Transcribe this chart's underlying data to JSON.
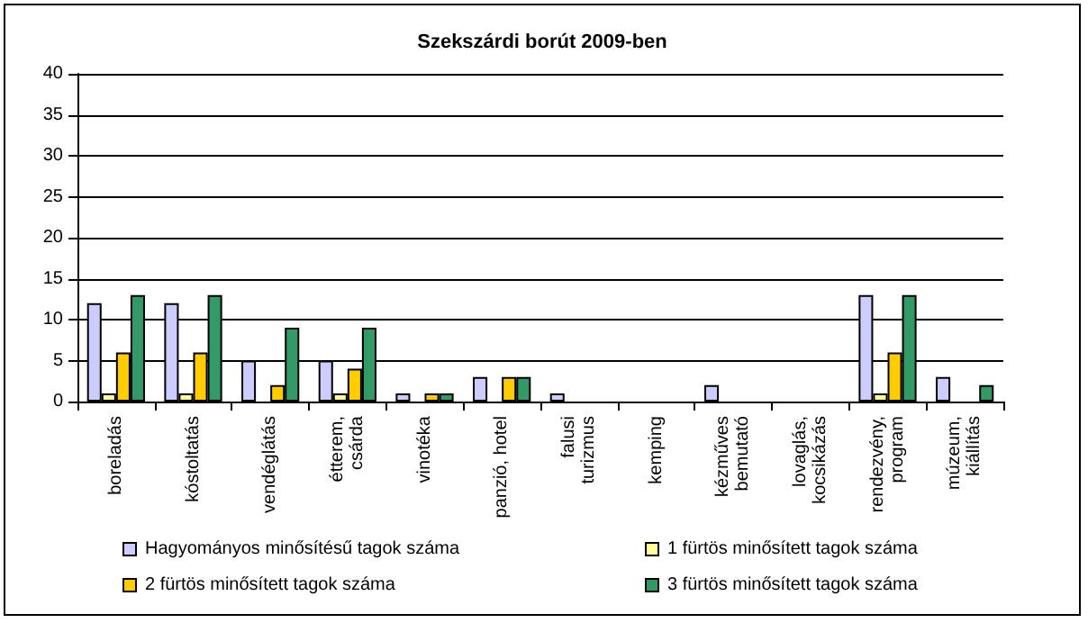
{
  "chart_data": {
    "type": "bar",
    "title": "Szekszárdi borút 2009-ben",
    "categories": [
      "boreladás",
      "kóstoltatás",
      "vendéglátás",
      "étterem,\ncsárda",
      "vinotéka",
      "panzió, hotel",
      "falusi\nturizmus",
      "kemping",
      "kézműves\nbemutató",
      "lovaglás,\nkocsikázás",
      "rendezvény,\nprogram",
      "múzeum,\nkiállítás"
    ],
    "series": [
      {
        "name": "Hagyományos minősítésű tagok száma",
        "color": "#ccccff",
        "values": [
          12,
          12,
          5,
          5,
          1,
          3,
          1,
          0,
          2,
          0,
          13,
          3
        ]
      },
      {
        "name": "1 fürtös minősített tagok száma",
        "color": "#ffff99",
        "values": [
          1,
          1,
          0,
          1,
          0,
          0,
          0,
          0,
          0,
          0,
          1,
          0
        ]
      },
      {
        "name": "2 fürtös minősített tagok száma",
        "color": "#ffcc00",
        "values": [
          6,
          6,
          2,
          4,
          1,
          3,
          0,
          0,
          0,
          0,
          6,
          0
        ]
      },
      {
        "name": "3 fürtös minősített tagok száma",
        "color": "#339966",
        "values": [
          13,
          13,
          9,
          9,
          1,
          3,
          0,
          0,
          0,
          0,
          13,
          2
        ]
      }
    ],
    "ylim": [
      0,
      40
    ],
    "yticks": [
      0,
      5,
      10,
      15,
      20,
      25,
      30,
      35,
      40
    ],
    "grid": "y",
    "legend": "bottom"
  }
}
